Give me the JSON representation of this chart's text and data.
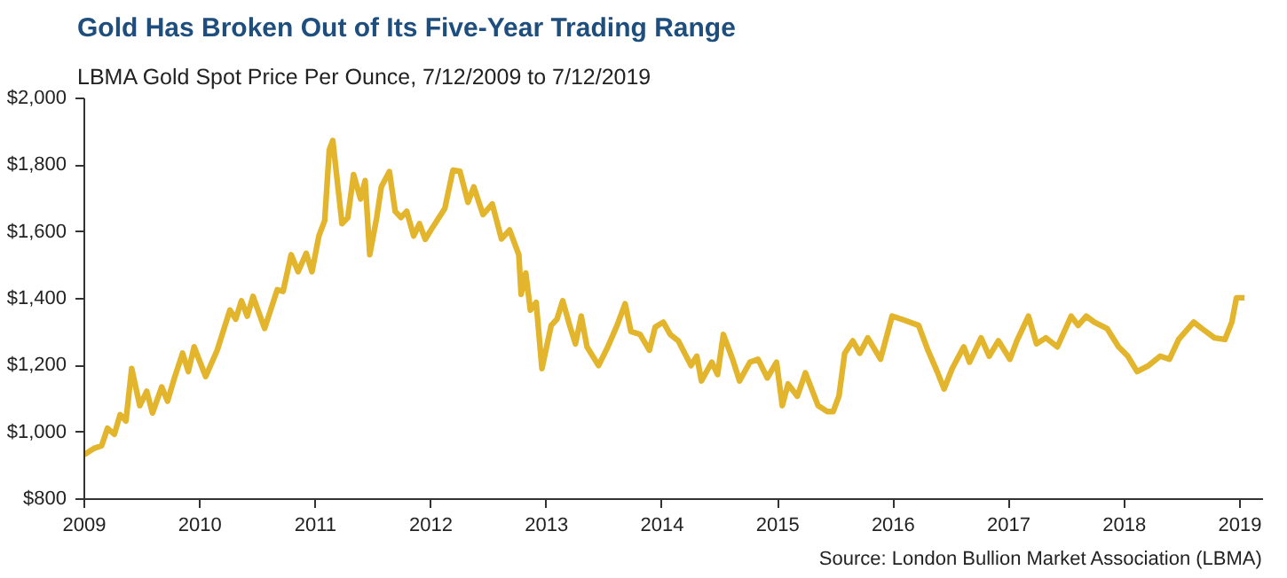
{
  "chart_data": {
    "type": "line",
    "title": "Gold Has Broken Out of Its Five-Year Trading Range",
    "subtitle": "LBMA Gold Spot Price Per Ounce, 7/12/2009 to 7/12/2019",
    "annotations": [
      "Source: London Bullion Market Association (LBMA)"
    ],
    "x": [
      2009.0,
      2009.08,
      2009.15,
      2009.2,
      2009.26,
      2009.31,
      2009.36,
      2009.41,
      2009.48,
      2009.54,
      2009.59,
      2009.67,
      2009.72,
      2009.78,
      2009.85,
      2009.9,
      2009.95,
      2010.05,
      2010.15,
      2010.26,
      2010.31,
      2010.36,
      2010.41,
      2010.46,
      2010.56,
      2010.67,
      2010.72,
      2010.79,
      2010.85,
      2010.92,
      2010.97,
      2011.03,
      2011.08,
      2011.12,
      2011.15,
      2011.23,
      2011.28,
      2011.33,
      2011.39,
      2011.43,
      2011.47,
      2011.53,
      2011.57,
      2011.64,
      2011.69,
      2011.74,
      2011.79,
      2011.85,
      2011.9,
      2011.95,
      2012.0,
      2012.12,
      2012.19,
      2012.25,
      2012.32,
      2012.37,
      2012.45,
      2012.53,
      2012.61,
      2012.68,
      2012.76,
      2012.78,
      2012.82,
      2012.86,
      2012.91,
      2012.96,
      2013.04,
      2013.09,
      2013.14,
      2013.2,
      2013.25,
      2013.3,
      2013.35,
      2013.45,
      2013.53,
      2013.61,
      2013.68,
      2013.73,
      2013.81,
      2013.89,
      2013.94,
      2014.01,
      2014.07,
      2014.14,
      2014.25,
      2014.3,
      2014.34,
      2014.43,
      2014.48,
      2014.53,
      2014.61,
      2014.67,
      2014.76,
      2014.83,
      2014.91,
      2014.99,
      2015.04,
      2015.09,
      2015.17,
      2015.24,
      2015.35,
      2015.43,
      2015.48,
      2015.53,
      2015.58,
      2015.65,
      2015.71,
      2015.78,
      2015.89,
      2015.99,
      2016.07,
      2016.14,
      2016.22,
      2016.3,
      2016.38,
      2016.44,
      2016.51,
      2016.61,
      2016.66,
      2016.76,
      2016.83,
      2016.91,
      2017.01,
      2017.07,
      2017.17,
      2017.24,
      2017.32,
      2017.42,
      2017.54,
      2017.6,
      2017.67,
      2017.74,
      2017.85,
      2017.95,
      2018.03,
      2018.11,
      2018.21,
      2018.31,
      2018.39,
      2018.47,
      2018.6,
      2018.67,
      2018.78,
      2018.87,
      2018.93,
      2018.97,
      2019.04
    ],
    "series": [
      {
        "color": "#e3b52c",
        "values": [
          933,
          951,
          960,
          1012,
          994,
          1053,
          1034,
          1191,
          1080,
          1123,
          1058,
          1136,
          1093,
          1163,
          1237,
          1182,
          1256,
          1167,
          1246,
          1366,
          1339,
          1394,
          1348,
          1407,
          1311,
          1427,
          1422,
          1532,
          1481,
          1536,
          1481,
          1588,
          1634,
          1846,
          1874,
          1625,
          1643,
          1772,
          1699,
          1754,
          1532,
          1643,
          1735,
          1781,
          1662,
          1643,
          1662,
          1588,
          1625,
          1578,
          1606,
          1671,
          1785,
          1782,
          1689,
          1735,
          1652,
          1684,
          1579,
          1606,
          1532,
          1413,
          1477,
          1366,
          1389,
          1191,
          1320,
          1339,
          1394,
          1320,
          1265,
          1348,
          1256,
          1200,
          1256,
          1320,
          1385,
          1302,
          1293,
          1246,
          1315,
          1330,
          1293,
          1274,
          1200,
          1228,
          1154,
          1210,
          1173,
          1293,
          1219,
          1154,
          1210,
          1219,
          1163,
          1210,
          1080,
          1145,
          1108,
          1178,
          1080,
          1062,
          1062,
          1108,
          1237,
          1274,
          1237,
          1283,
          1219,
          1348,
          1339,
          1330,
          1320,
          1246,
          1182,
          1130,
          1191,
          1256,
          1210,
          1283,
          1228,
          1274,
          1219,
          1274,
          1348,
          1265,
          1283,
          1256,
          1348,
          1320,
          1348,
          1330,
          1311,
          1256,
          1228,
          1182,
          1200,
          1228,
          1219,
          1278,
          1330,
          1311,
          1283,
          1278,
          1330,
          1403,
          1403
        ]
      }
    ],
    "xlim": [
      2009,
      2019.2
    ],
    "ylim": [
      800,
      2000
    ],
    "xticks": [
      2009,
      2010,
      2011,
      2012,
      2013,
      2014,
      2015,
      2016,
      2017,
      2018,
      2019
    ],
    "yticks": [
      {
        "value": 800,
        "label": "$800"
      },
      {
        "value": 1000,
        "label": "$1,000"
      },
      {
        "value": 1200,
        "label": "$1,200"
      },
      {
        "value": 1400,
        "label": "$1,400"
      },
      {
        "value": 1600,
        "label": "$1,600"
      },
      {
        "value": 1800,
        "label": "$1,800"
      },
      {
        "value": 2000,
        "label": "$2,000"
      }
    ],
    "grid": false,
    "marker": "none",
    "line_style": "solid"
  }
}
